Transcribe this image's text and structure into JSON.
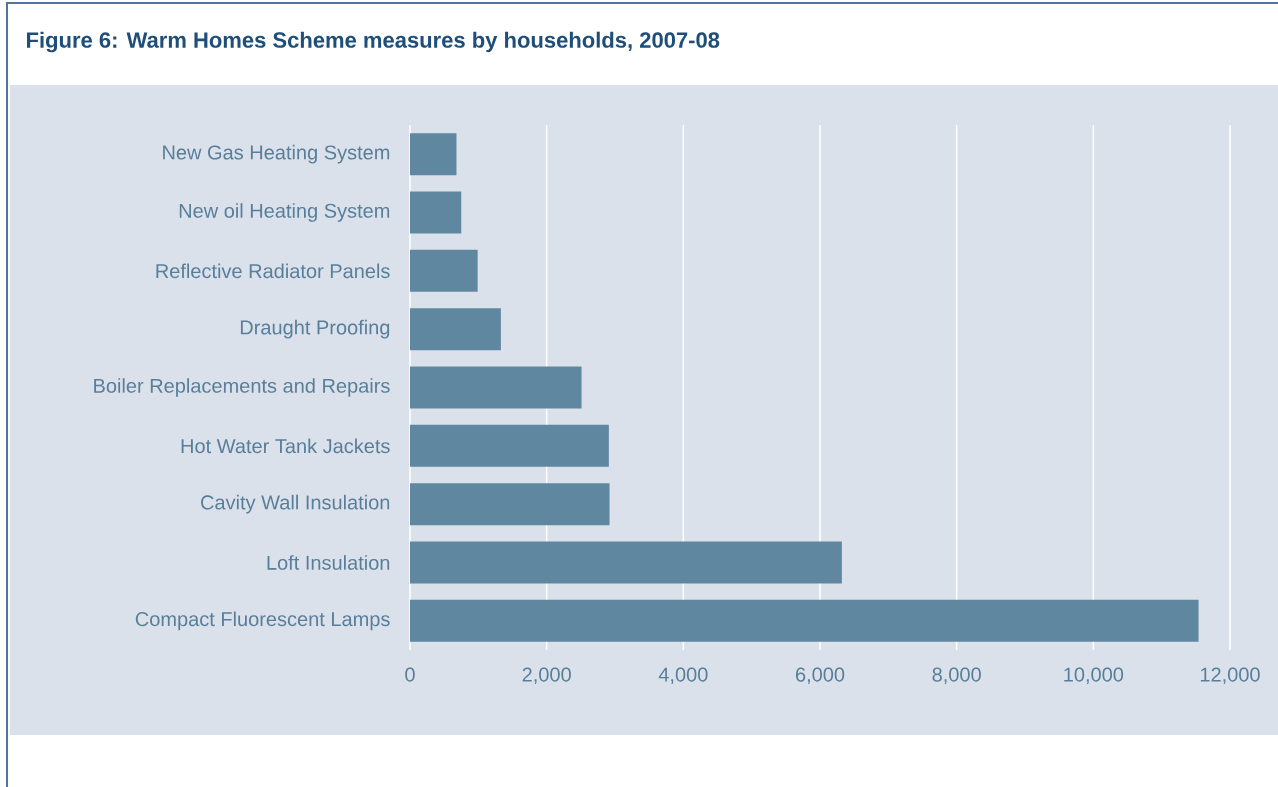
{
  "chart_data": {
    "type": "bar",
    "orientation": "horizontal",
    "title": "Figure 6: Warm Homes Scheme measures by households, 2007-08",
    "categories": [
      "New Gas Heating System",
      "New oil Heating System",
      "Reflective Radiator Panels",
      "Draught Proofing",
      "Boiler Replacements and Repairs",
      "Hot Water Tank Jackets",
      "Cavity Wall Insulation",
      "Loft Insulation",
      "Compact Fluorescent Lamps"
    ],
    "values": [
      680,
      750,
      990,
      1330,
      2510,
      2910,
      2920,
      6320,
      11540
    ],
    "color": "#5f87a0",
    "xlim": [
      0,
      12000
    ],
    "xticks": [
      0,
      {
        "value": 2000,
        "label": "2,000"
      },
      {
        "value": 4000,
        "label": "4,000"
      },
      {
        "value": 6000,
        "label": "6,000"
      },
      {
        "value": 8000,
        "label": "8,000"
      },
      {
        "value": 10000,
        "label": "10,000"
      },
      {
        "value": 12000,
        "label": "12,000"
      }
    ],
    "grid": "x"
  }
}
